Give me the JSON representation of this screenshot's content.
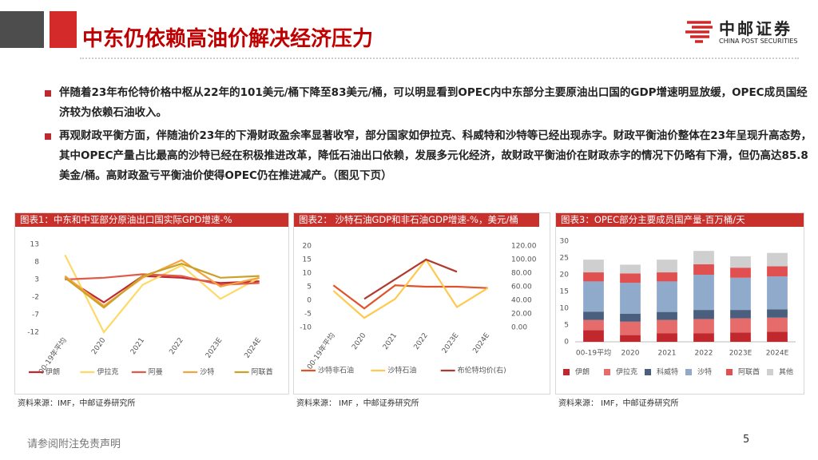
{
  "header": {
    "title": "中东仍依赖高油价解决经济压力",
    "logo_name": "中邮证券",
    "logo_english": "CHINA POST SECURITIES"
  },
  "bullets": [
    "伴随着23年布伦特价格中枢从22年的101美元/桶下降至83美元/桶，可以明显看到OPEC内中东部分主要原油出口国的GDP增速明显放缓，OPEC成员国经济较为依赖石油收入。",
    "再观财政平衡方面，伴随油价23年的下滑财政盈余率显著收窄，部分国家如伊拉克、科威特和沙特等已经出现赤字。财政平衡油价整体在23年呈现升高态势，其中OPEC产量占比最高的沙特已经在积极推进改革，降低石油出口依赖，发展多元化经济，故财政平衡油价在财政赤字的情况下仍略有下滑，但仍高达85.8美金/桶。高财政盈亏平衡油价使得OPEC仍在推进减产。（图见下页）"
  ],
  "chart_data": [
    {
      "type": "line",
      "title": "图表1：中东和中亚部分原油出口国实际GPD增速-%",
      "source": "资料来源：IMF，中邮证券研究所",
      "categories": [
        "00-19年平均",
        "2020",
        "2021",
        "2022",
        "2023E",
        "2024E"
      ],
      "ylim": [
        -12,
        13
      ],
      "yticks": [
        -12,
        -7,
        -2,
        3,
        8,
        13
      ],
      "series": [
        {
          "name": "伊朗",
          "color": "#c0282d",
          "values": [
            3.5,
            -3.5,
            4,
            3.5,
            2,
            2.5
          ]
        },
        {
          "name": "伊拉克",
          "color": "#ffd966",
          "values": [
            10,
            -12,
            1.5,
            7,
            -2.5,
            3.5
          ]
        },
        {
          "name": "阿曼",
          "color": "#e05a4a",
          "values": [
            3,
            3.5,
            4.5,
            4,
            1.5,
            2
          ]
        },
        {
          "name": "沙特",
          "color": "#f4a340",
          "values": [
            4,
            -4.5,
            3.5,
            8.5,
            1,
            3.5
          ]
        },
        {
          "name": "阿联酋",
          "color": "#c9a227",
          "values": [
            3.5,
            -5,
            4,
            7.5,
            3.5,
            4
          ]
        }
      ]
    },
    {
      "type": "line",
      "title": "图表2： 沙特石油GDP和非石油GDP增速-%，美元/桶",
      "source": "资料来源： IMF ，中邮证券研究所",
      "categories": [
        "00-19年平均",
        "2020",
        "2021",
        "2022",
        "2023E",
        "2024E"
      ],
      "ylim": [
        -10,
        20
      ],
      "yticks": [
        -10,
        -5,
        0,
        5,
        10,
        15,
        20
      ],
      "y2lim": [
        0,
        120
      ],
      "y2ticks": [
        {
          "value": 0,
          "label": "0.00"
        },
        {
          "value": 20,
          "label": "20.00"
        },
        {
          "value": 40,
          "label": "40.00"
        },
        {
          "value": 60,
          "label": "60.00"
        },
        {
          "value": 80,
          "label": "80.00"
        },
        {
          "value": 100,
          "label": "100.00"
        },
        {
          "value": 120,
          "label": "120.00"
        }
      ],
      "series": [
        {
          "name": "沙特非石油",
          "color": "#e0522a",
          "values": [
            5.5,
            -3,
            5.5,
            5,
            5,
            4.5
          ]
        },
        {
          "name": "沙特石油",
          "color": "#ffc94d",
          "values": [
            3.5,
            -6.5,
            0.5,
            15,
            -2.5,
            4.5
          ]
        },
        {
          "name": "布伦特均价(右)",
          "color": "#b03a2e",
          "axis": "y2",
          "values": [
            null,
            42,
            71,
            100,
            82,
            null
          ]
        }
      ]
    },
    {
      "type": "bar",
      "stacked": true,
      "title": "图表3：OPEC部分主要成员国产量-百万桶/天",
      "source": "资料来源： IMF，中邮证券研究所",
      "categories": [
        "00-19平均",
        "2020",
        "2021",
        "2022",
        "2023E",
        "2024E"
      ],
      "ylim": [
        0,
        30
      ],
      "yticks": [
        0,
        5,
        10,
        15,
        20,
        25,
        30
      ],
      "series": [
        {
          "name": "伊朗",
          "color": "#c0282d",
          "values": [
            3.5,
            2,
            2.5,
            2.5,
            2.8,
            3
          ]
        },
        {
          "name": "伊拉克",
          "color": "#e66c6c",
          "values": [
            3,
            4,
            4,
            4.3,
            4.2,
            4.2
          ]
        },
        {
          "name": "科威特",
          "color": "#4a5e7e",
          "values": [
            2.5,
            2.4,
            2.4,
            2.7,
            2.5,
            2.5
          ]
        },
        {
          "name": "沙特",
          "color": "#8faacb",
          "values": [
            9,
            9.2,
            9.1,
            10.5,
            9.6,
            9.8
          ]
        },
        {
          "name": "阿联酋",
          "color": "#e05050",
          "values": [
            2.7,
            2.8,
            2.7,
            3.1,
            3,
            3
          ]
        },
        {
          "name": "其他",
          "color": "#cfcfcf",
          "values": [
            3.8,
            2.6,
            3.8,
            4,
            3.4,
            4
          ]
        }
      ]
    }
  ],
  "footer": {
    "disclaimer": "请参阅附注免责声明",
    "page": "5"
  }
}
